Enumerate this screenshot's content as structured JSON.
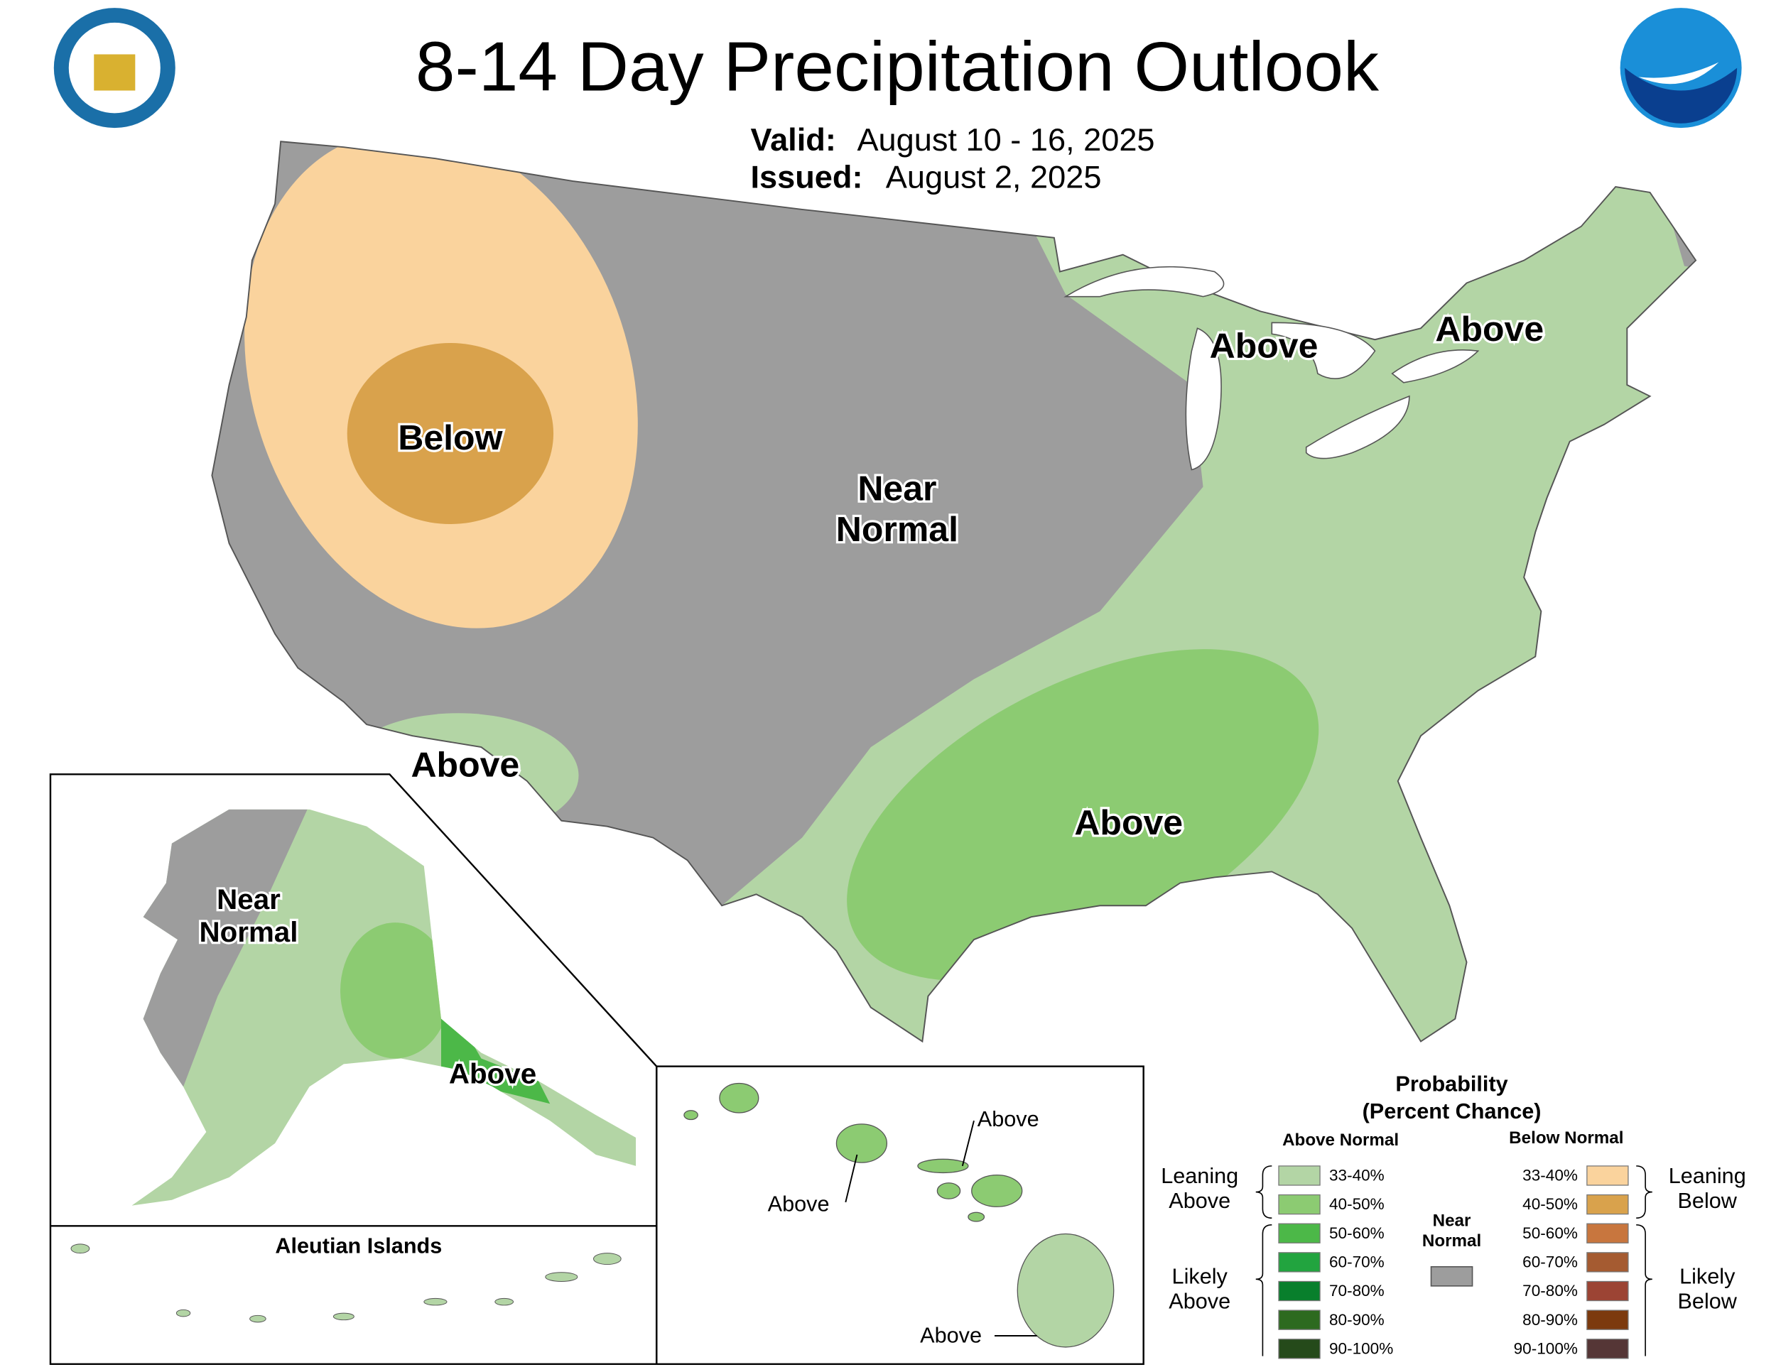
{
  "header": {
    "title": "8-14 Day Precipitation Outlook",
    "valid_label": "Valid:",
    "valid": "August 10 - 16, 2025",
    "issued_label": "Issued:",
    "issued": "August 2, 2025"
  },
  "map_labels": {
    "below_west": "Below",
    "near_normal_central": [
      "Near",
      "Normal"
    ],
    "above_great_lakes": "Above",
    "above_northeast": "Above",
    "above_southwest": "Above",
    "above_south": "Above",
    "near_normal_alaska": [
      "Near",
      "Normal"
    ],
    "above_alaska": "Above",
    "above_hawaii_kauai": "Above",
    "above_hawaii_oahu": "Above",
    "above_hawaii_big": "Above"
  },
  "aleutian_title": "Aleutian Islands",
  "legend": {
    "title": [
      "Probability",
      "(Percent Chance)"
    ],
    "above_header": "Above Normal",
    "below_header": "Below Normal",
    "above": [
      {
        "label": "33-40%",
        "color": "#b3d5a5"
      },
      {
        "label": "40-50%",
        "color": "#8ccb72"
      },
      {
        "label": "50-60%",
        "color": "#4cb848"
      },
      {
        "label": "60-70%",
        "color": "#22a43f"
      },
      {
        "label": "70-80%",
        "color": "#087f2c"
      },
      {
        "label": "80-90%",
        "color": "#2d6a1f"
      },
      {
        "label": "90-100%",
        "color": "#254a1a"
      }
    ],
    "below": [
      {
        "label": "33-40%",
        "color": "#fad39d"
      },
      {
        "label": "40-50%",
        "color": "#d9a24c"
      },
      {
        "label": "50-60%",
        "color": "#c8763e"
      },
      {
        "label": "60-70%",
        "color": "#a55b31"
      },
      {
        "label": "70-80%",
        "color": "#9c4434"
      },
      {
        "label": "80-90%",
        "color": "#7c3a0e"
      },
      {
        "label": "90-100%",
        "color": "#553636"
      }
    ],
    "near_normal": [
      "Near",
      "Normal"
    ],
    "near_color": "#9d9d9d",
    "leaning_above": [
      "Leaning",
      "Above"
    ],
    "likely_above": [
      "Likely",
      "Above"
    ],
    "leaning_below": [
      "Leaning",
      "Below"
    ],
    "likely_below": [
      "Likely",
      "Below"
    ]
  }
}
